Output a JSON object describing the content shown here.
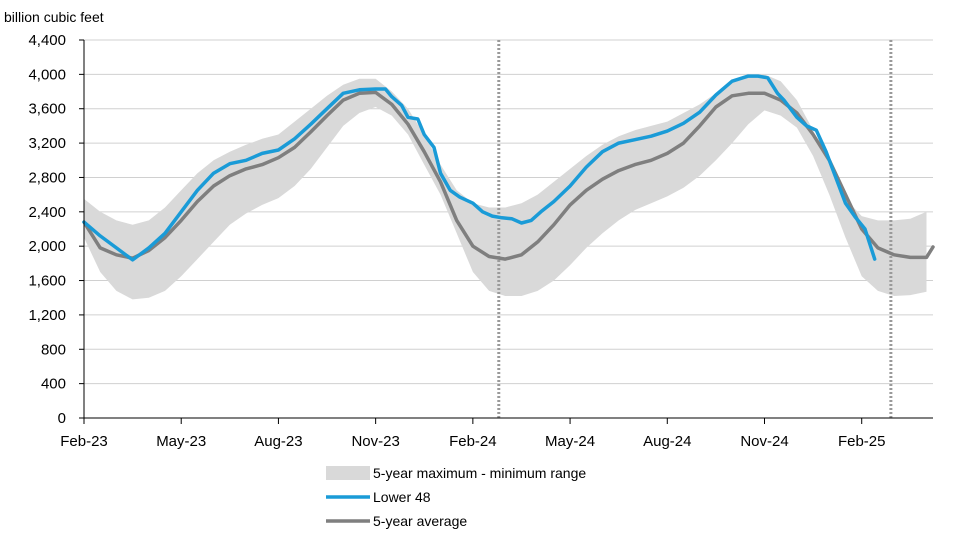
{
  "chart_data": {
    "type": "line",
    "title": "",
    "ylabel": "billion cubic feet",
    "xlabel": "",
    "ylim": [
      0,
      4400
    ],
    "yticks": [
      0,
      400,
      800,
      1200,
      1600,
      2000,
      2400,
      2800,
      3200,
      3600,
      4000,
      4400
    ],
    "ytick_labels": [
      "0",
      "400",
      "800",
      "1,200",
      "1,600",
      "2,000",
      "2,400",
      "2,800",
      "3,200",
      "3,600",
      "4,000",
      "4,400"
    ],
    "x_unit": "months since Jan-2023",
    "xlim": [
      1,
      27.2
    ],
    "xticks": [
      {
        "x": 1,
        "label": "Feb-23"
      },
      {
        "x": 4,
        "label": "May-23"
      },
      {
        "x": 7,
        "label": "Aug-23"
      },
      {
        "x": 10,
        "label": "Nov-23"
      },
      {
        "x": 13,
        "label": "Feb-24"
      },
      {
        "x": 16,
        "label": "May-24"
      },
      {
        "x": 19,
        "label": "Aug-24"
      },
      {
        "x": 22,
        "label": "Nov-24"
      },
      {
        "x": 25,
        "label": "Feb-25"
      }
    ],
    "reference_lines_x": [
      13.8,
      25.9
    ],
    "grid": true,
    "legend_position": "bottom-center",
    "series": [
      {
        "name": "5-year maximum - minimum range",
        "kind": "band",
        "color": "#d9d9d9",
        "x": [
          1,
          1.5,
          2,
          2.5,
          3,
          3.5,
          4,
          4.5,
          5,
          5.5,
          6,
          6.5,
          7,
          7.5,
          8,
          8.5,
          9,
          9.5,
          10,
          10.5,
          11,
          11.5,
          12,
          12.5,
          13,
          13.5,
          14,
          14.5,
          15,
          15.5,
          16,
          16.5,
          17,
          17.5,
          18,
          18.5,
          19,
          19.5,
          20,
          20.5,
          21,
          21.5,
          22,
          22.5,
          23,
          23.5,
          24,
          24.5,
          25,
          25.5,
          26,
          26.5,
          27
        ],
        "low": [
          2100,
          1700,
          1480,
          1380,
          1400,
          1480,
          1650,
          1850,
          2050,
          2250,
          2380,
          2480,
          2560,
          2700,
          2900,
          3150,
          3400,
          3550,
          3620,
          3520,
          3300,
          2950,
          2600,
          2150,
          1700,
          1480,
          1420,
          1420,
          1480,
          1600,
          1780,
          1980,
          2150,
          2300,
          2420,
          2500,
          2580,
          2680,
          2820,
          3000,
          3200,
          3420,
          3580,
          3520,
          3380,
          3050,
          2600,
          2100,
          1650,
          1480,
          1420,
          1430,
          1470
        ],
        "high": [
          2550,
          2400,
          2300,
          2250,
          2300,
          2450,
          2650,
          2850,
          3000,
          3100,
          3180,
          3250,
          3300,
          3450,
          3600,
          3750,
          3880,
          3950,
          3950,
          3800,
          3600,
          3300,
          2950,
          2650,
          2500,
          2450,
          2450,
          2500,
          2600,
          2750,
          2900,
          3050,
          3180,
          3280,
          3350,
          3400,
          3450,
          3550,
          3650,
          3780,
          3900,
          4000,
          4000,
          3920,
          3700,
          3350,
          2950,
          2550,
          2350,
          2300,
          2300,
          2320,
          2400
        ]
      },
      {
        "name": "Lower 48",
        "kind": "line",
        "color": "#1a9bd7",
        "x": [
          1,
          1.5,
          2,
          2.5,
          3,
          3.5,
          4,
          4.5,
          5,
          5.5,
          6,
          6.5,
          7,
          7.5,
          8,
          8.5,
          9,
          9.5,
          10,
          10.3,
          10.5,
          10.8,
          11,
          11.3,
          11.5,
          11.8,
          12,
          12.3,
          12.6,
          13,
          13.3,
          13.6,
          13.9,
          14.2,
          14.5,
          14.8,
          15.1,
          15.5,
          16,
          16.5,
          17,
          17.5,
          18,
          18.5,
          19,
          19.5,
          20,
          20.5,
          21,
          21.5,
          21.8,
          22.1,
          22.4,
          22.6,
          22.8,
          23,
          23.3,
          23.6,
          23.9,
          24.2,
          24.5,
          24.8,
          25.1,
          25.4
        ],
        "values": [
          2280,
          2120,
          1980,
          1840,
          1980,
          2150,
          2400,
          2650,
          2850,
          2960,
          3000,
          3080,
          3120,
          3250,
          3420,
          3600,
          3780,
          3820,
          3830,
          3830,
          3740,
          3640,
          3500,
          3480,
          3300,
          3150,
          2850,
          2650,
          2570,
          2500,
          2400,
          2350,
          2330,
          2320,
          2270,
          2300,
          2400,
          2520,
          2700,
          2920,
          3100,
          3200,
          3240,
          3280,
          3340,
          3430,
          3560,
          3760,
          3920,
          3980,
          3980,
          3960,
          3780,
          3700,
          3600,
          3500,
          3400,
          3350,
          3100,
          2800,
          2500,
          2340,
          2200,
          1850
        ]
      },
      {
        "name": "5-year average",
        "kind": "line",
        "color": "#7f7f7f",
        "x": [
          1,
          1.5,
          2,
          2.5,
          3,
          3.5,
          4,
          4.5,
          5,
          5.5,
          6,
          6.5,
          7,
          7.5,
          8,
          8.5,
          9,
          9.5,
          10,
          10.5,
          11,
          11.5,
          12,
          12.5,
          13,
          13.5,
          14,
          14.5,
          15,
          15.5,
          16,
          16.5,
          17,
          17.5,
          18,
          18.5,
          19,
          19.5,
          20,
          20.5,
          21,
          21.5,
          22,
          22.5,
          23,
          23.5,
          24,
          24.5,
          25,
          25.5,
          26,
          26.5,
          27,
          27.2
        ],
        "values": [
          2280,
          1980,
          1900,
          1860,
          1950,
          2100,
          2300,
          2520,
          2700,
          2820,
          2900,
          2950,
          3030,
          3150,
          3330,
          3520,
          3700,
          3780,
          3790,
          3650,
          3420,
          3100,
          2750,
          2300,
          2000,
          1880,
          1850,
          1900,
          2050,
          2250,
          2480,
          2650,
          2780,
          2880,
          2950,
          3000,
          3080,
          3200,
          3400,
          3620,
          3750,
          3780,
          3780,
          3700,
          3550,
          3300,
          3000,
          2600,
          2200,
          1980,
          1900,
          1870,
          1870,
          1990
        ]
      }
    ]
  }
}
